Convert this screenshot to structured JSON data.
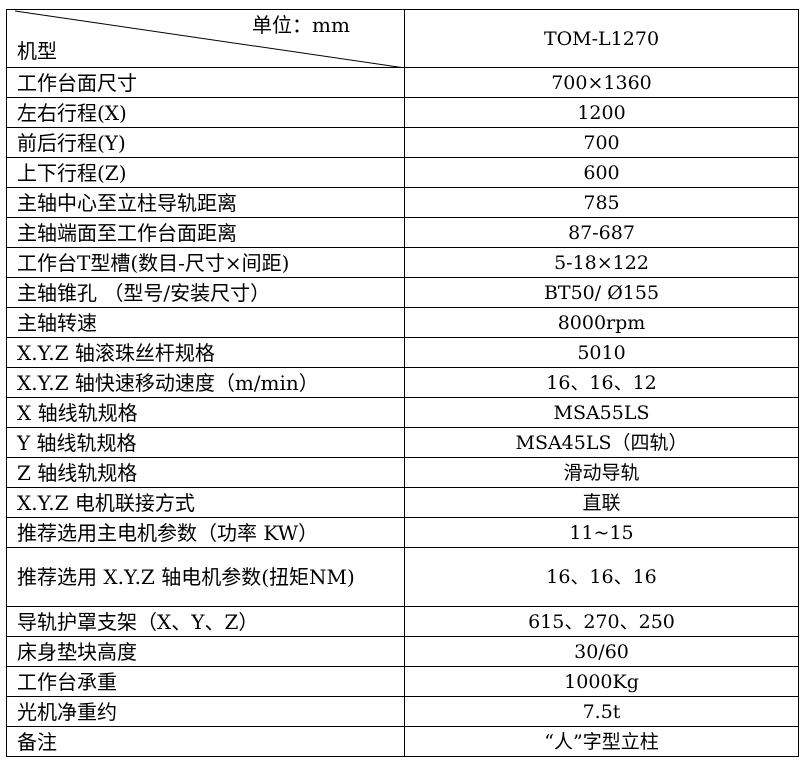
{
  "header": {
    "unit_label": "单位：mm",
    "model_label": "机型",
    "model_value": "TOM-L1270"
  },
  "rows": [
    {
      "label": "工作台面尺寸",
      "value": "700×1360"
    },
    {
      "label": "左右行程(X)",
      "value": "1200"
    },
    {
      "label": "前后行程(Y)",
      "value": "700"
    },
    {
      "label": "上下行程(Z)",
      "value": "600"
    },
    {
      "label": "主轴中心至立柱导轨距离",
      "value": "785"
    },
    {
      "label": "主轴端面至工作台面距离",
      "value": "87-687"
    },
    {
      "label": "工作台T型槽(数目-尺寸×间距)",
      "value": "5-18×122"
    },
    {
      "label": "主轴锥孔 （型号/安装尺寸）",
      "value": "BT50/ Ø155"
    },
    {
      "label": "主轴转速",
      "value": "8000rpm"
    },
    {
      "label": "X.Y.Z 轴滚珠丝杆规格",
      "value": "5010"
    },
    {
      "label": "X.Y.Z 轴快速移动速度（m/min）",
      "value": "16、16、12"
    },
    {
      "label": "X 轴线轨规格",
      "value": "MSA55LS"
    },
    {
      "label": "Y 轴线轨规格",
      "value": "MSA45LS（四轨）"
    },
    {
      "label": "Z 轴线轨规格",
      "value": "滑动导轨"
    },
    {
      "label": "X.Y.Z 电机联接方式",
      "value": "直联"
    },
    {
      "label": "推荐选用主电机参数（功率 KW）",
      "value": "11~15"
    },
    {
      "label": "推荐选用 X.Y.Z 轴电机参数(扭矩NM)",
      "value": "16、16、16"
    },
    {
      "label": "导轨护罩支架（X、Y、Z）",
      "value": "615、270、250"
    },
    {
      "label": "床身垫块高度",
      "value": "30/60"
    },
    {
      "label": "工作台承重",
      "value": "1000Kg"
    },
    {
      "label": "光机净重约",
      "value": "7.5t"
    },
    {
      "label": "备注",
      "value": "“人”字型立柱"
    }
  ]
}
